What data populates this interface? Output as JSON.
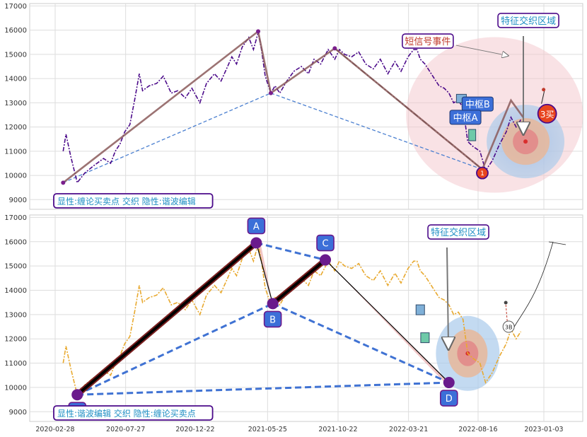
{
  "chart_data": [
    {
      "type": "line",
      "panel": "top",
      "ylim": [
        8600,
        17100
      ],
      "yticks": [
        9000,
        10000,
        11000,
        12000,
        13000,
        14000,
        15000,
        16000,
        17000
      ],
      "grid": true,
      "legend_box": "显性:缠论买卖点 交织 隐性:谐波编辑",
      "series": [
        {
          "name": "",
          "style": "dash-dot purple",
          "x": [
            "2020-03-16",
            "2020-03-22",
            "2020-04-01",
            "2020-04-15",
            "2020-05-01",
            "2020-05-20",
            "2020-06-10",
            "2020-06-25",
            "2020-07-05",
            "2020-07-15",
            "2020-07-25",
            "2020-08-05",
            "2020-08-15",
            "2020-08-25",
            "2020-09-01",
            "2020-09-15",
            "2020-10-01",
            "2020-10-15",
            "2020-11-01",
            "2020-11-15",
            "2020-12-01",
            "2020-12-15",
            "2021-01-01",
            "2021-01-15",
            "2021-02-01",
            "2021-02-15",
            "2021-03-01",
            "2021-03-10",
            "2021-03-20",
            "2021-04-01",
            "2021-04-15",
            "2021-04-25",
            "2021-05-05",
            "2021-05-12",
            "2021-05-20",
            "2021-06-01",
            "2021-06-10",
            "2021-06-20",
            "2021-07-05",
            "2021-07-20",
            "2021-08-05",
            "2021-08-20",
            "2021-09-01",
            "2021-09-15",
            "2021-10-01",
            "2021-10-15",
            "2021-10-25",
            "2021-11-05",
            "2021-11-20",
            "2021-12-05",
            "2021-12-20",
            "2022-01-05",
            "2022-01-20",
            "2022-02-05",
            "2022-02-20",
            "2022-03-05",
            "2022-03-20",
            "2022-04-01",
            "2022-04-08",
            "2022-04-15",
            "2022-04-25",
            "2022-05-05",
            "2022-05-15",
            "2022-05-25",
            "2022-06-05",
            "2022-06-15",
            "2022-06-25",
            "2022-07-05",
            "2022-07-15",
            "2022-07-25",
            "2022-08-05",
            "2022-08-20",
            "2022-09-01",
            "2022-09-15",
            "2022-10-01",
            "2022-10-15",
            "2022-10-25",
            "2022-11-05",
            "2022-11-15"
          ],
          "y": [
            11000,
            11700,
            10800,
            9700,
            10100,
            10400,
            10700,
            10500,
            11000,
            11300,
            11800,
            12100,
            13100,
            14200,
            13500,
            13700,
            13800,
            14100,
            13400,
            13500,
            13200,
            13600,
            13000,
            13800,
            14200,
            13900,
            14500,
            14900,
            14600,
            15300,
            15700,
            15200,
            15900,
            15200,
            14100,
            13400,
            13700,
            13400,
            13900,
            14300,
            14500,
            14200,
            14800,
            14600,
            15200,
            14800,
            15200,
            15000,
            14900,
            15100,
            14600,
            14400,
            14800,
            14200,
            14700,
            14300,
            14900,
            15200,
            15200,
            14800,
            14600,
            14300,
            14000,
            13700,
            13600,
            13400,
            13000,
            13100,
            12800,
            11400,
            11200,
            11000,
            10200,
            10600,
            11300,
            11800,
            12400,
            12000,
            12300
          ]
        },
        {
          "name": "",
          "style": "solid brown trend",
          "x": [
            "2020-03-16",
            "2021-05-05",
            "2021-06-01",
            "2021-10-15",
            "2022-08-25",
            "2022-10-25",
            "2022-11-20"
          ],
          "y": [
            9700,
            15950,
            13400,
            15250,
            10250,
            13100,
            12400
          ]
        },
        {
          "name": "",
          "style": "dashed blue",
          "x": [
            "2020-03-16",
            "2021-06-01",
            "2022-08-25"
          ],
          "y": [
            9700,
            13400,
            10250
          ]
        },
        {
          "name": "",
          "style": "dash-dot black",
          "x": [
            "2021-10-15",
            "2022-08-25"
          ],
          "y": [
            15250,
            10250
          ]
        }
      ],
      "annotations": [
        {
          "text": "短信号事件",
          "x": "2022-05-01",
          "y": 15550
        },
        {
          "text": "特征交织区域",
          "x": "2022-12-01",
          "y": 16400
        },
        {
          "text": "中枢B",
          "x": "2022-08-15",
          "y": 12950
        },
        {
          "text": "中枢A",
          "x": "2022-07-20",
          "y": 12400
        },
        {
          "text": "3买",
          "x": "2023-01-10",
          "y": 12550
        },
        {
          "text": "1",
          "x": "2022-08-25",
          "y": 10100
        }
      ],
      "regions": [
        {
          "center_x": "2022-09-20",
          "center_y": 12500,
          "color": "pink"
        },
        {
          "center_x": "2022-11-25",
          "center_y": 11400,
          "color": "blue"
        },
        {
          "center_x": "2022-11-25",
          "center_y": 11400,
          "color": "orange"
        },
        {
          "center_x": "2022-11-25",
          "center_y": 11400,
          "color": "red"
        }
      ]
    },
    {
      "type": "line",
      "panel": "bottom",
      "ylim": [
        8600,
        17100
      ],
      "yticks": [
        9000,
        10000,
        11000,
        12000,
        13000,
        14000,
        15000,
        16000,
        17000
      ],
      "grid": true,
      "legend_box": "显性:谐波编辑 交织 隐性:缠论买卖点",
      "xticks": [
        "2020-02-28",
        "2020-07-27",
        "2020-12-22",
        "2021-05-25",
        "2021-10-22",
        "2022-03-21",
        "2022-08-16",
        "2023-01-03"
      ],
      "series": [
        {
          "name": "",
          "style": "dash-dot orange",
          "x": [
            "2020-03-16",
            "2020-03-22",
            "2020-04-01",
            "2020-04-15",
            "2020-05-01",
            "2020-05-20",
            "2020-06-10",
            "2020-06-25",
            "2020-07-05",
            "2020-07-15",
            "2020-07-25",
            "2020-08-05",
            "2020-08-15",
            "2020-08-25",
            "2020-09-01",
            "2020-09-15",
            "2020-10-01",
            "2020-10-15",
            "2020-11-01",
            "2020-11-15",
            "2020-12-01",
            "2020-12-15",
            "2021-01-01",
            "2021-01-15",
            "2021-02-01",
            "2021-02-15",
            "2021-03-01",
            "2021-03-10",
            "2021-03-20",
            "2021-04-01",
            "2021-04-15",
            "2021-04-25",
            "2021-05-05",
            "2021-05-12",
            "2021-05-20",
            "2021-06-01",
            "2021-06-10",
            "2021-06-20",
            "2021-07-05",
            "2021-07-20",
            "2021-08-05",
            "2021-08-20",
            "2021-09-01",
            "2021-09-15",
            "2021-10-01",
            "2021-10-15",
            "2021-10-25",
            "2021-11-05",
            "2021-11-20",
            "2021-12-05",
            "2021-12-20",
            "2022-01-05",
            "2022-01-20",
            "2022-02-05",
            "2022-02-20",
            "2022-03-05",
            "2022-03-20",
            "2022-04-01",
            "2022-04-08",
            "2022-04-15",
            "2022-04-25",
            "2022-05-05",
            "2022-05-15",
            "2022-05-25",
            "2022-06-05",
            "2022-06-15",
            "2022-06-25",
            "2022-07-05",
            "2022-07-15",
            "2022-07-25",
            "2022-08-05",
            "2022-08-20",
            "2022-09-01",
            "2022-09-15",
            "2022-10-01",
            "2022-10-15",
            "2022-10-25",
            "2022-11-05",
            "2022-11-15"
          ],
          "y": [
            11000,
            11700,
            10800,
            9700,
            10100,
            10400,
            10700,
            10500,
            11000,
            11300,
            11800,
            12100,
            13100,
            14200,
            13500,
            13700,
            13800,
            14100,
            13400,
            13500,
            13200,
            13600,
            13000,
            13800,
            14200,
            13900,
            14500,
            14900,
            14600,
            15300,
            15700,
            15200,
            15900,
            15200,
            14100,
            13400,
            13700,
            13400,
            13900,
            14300,
            14500,
            14200,
            14800,
            14600,
            15200,
            14800,
            15200,
            15000,
            14900,
            15100,
            14600,
            14400,
            14800,
            14200,
            14700,
            14300,
            14900,
            15200,
            15200,
            14800,
            14600,
            14300,
            14000,
            13700,
            13600,
            13400,
            13000,
            13100,
            12800,
            11400,
            11200,
            11000,
            10200,
            10600,
            11300,
            11800,
            12400,
            12000,
            12300
          ]
        },
        {
          "name": "",
          "style": "thick black XA / BC",
          "x": [
            "2020-04-15",
            "2021-05-01",
            "2021-06-05",
            "2021-09-25"
          ],
          "y": [
            9700,
            15950,
            13450,
            15250
          ]
        },
        {
          "name": "",
          "style": "black thin AB / CD",
          "x": [
            "2021-05-01",
            "2021-06-05",
            "2021-09-25",
            "2022-06-15"
          ],
          "y": [
            15950,
            13450,
            15250,
            10200
          ]
        },
        {
          "name": "",
          "style": "dashed blue",
          "x": [
            "2020-04-15",
            "2021-06-05",
            "2022-06-15",
            "2020-04-15",
            "2021-05-01",
            "2021-09-25"
          ],
          "y": [
            9700,
            13450,
            10200,
            9700,
            15950,
            15250
          ]
        }
      ],
      "harmonic_points": [
        {
          "label": "X",
          "x": "2020-04-15",
          "y": 9700
        },
        {
          "label": "A",
          "x": "2021-05-01",
          "y": 15950
        },
        {
          "label": "B",
          "x": "2021-06-05",
          "y": 13450
        },
        {
          "label": "C",
          "x": "2021-09-25",
          "y": 15250
        },
        {
          "label": "D",
          "x": "2022-06-15",
          "y": 10200
        }
      ],
      "annotations": [
        {
          "text": "特征交织区域",
          "x": "2022-07-05",
          "y": 16400
        },
        {
          "text": "3B",
          "x": "2022-10-20",
          "y": 12500
        }
      ]
    }
  ]
}
